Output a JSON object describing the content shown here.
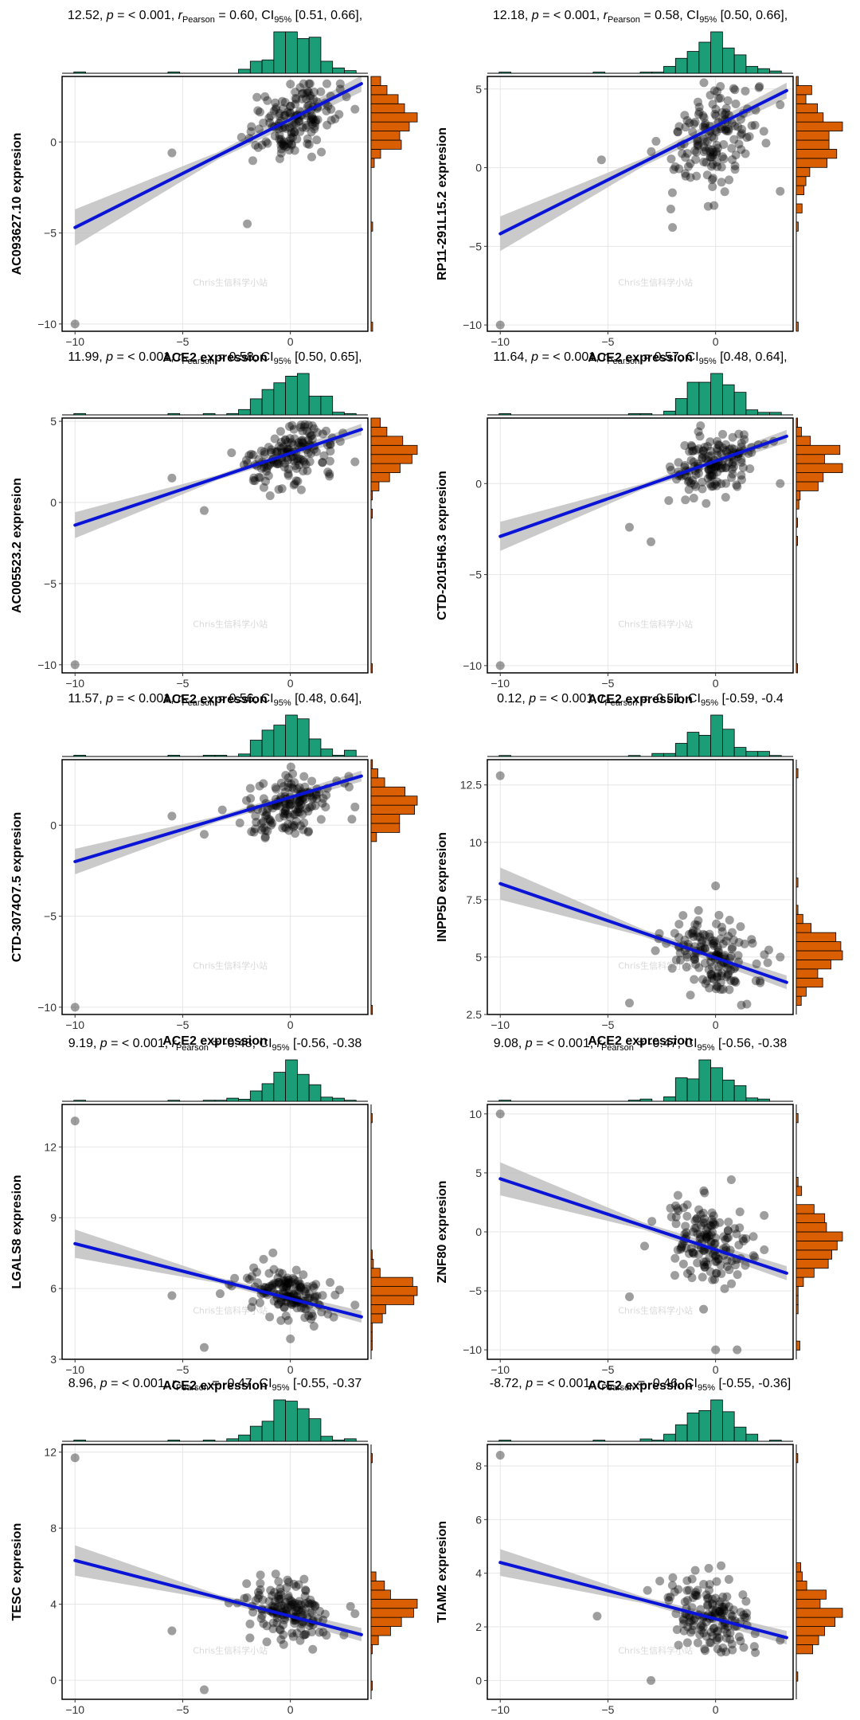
{
  "figure": {
    "watermark": "Chris生信科学小站",
    "colors": {
      "points": "#000000",
      "fit_line": "#0a14d6",
      "confidence_band": "#bdbdbd",
      "x_histogram": "#1b9e77",
      "y_histogram": "#d95f02"
    }
  },
  "chart_data": [
    {
      "type": "scatter",
      "title": "12.52, p = < 0.001, r_Pearson = 0.60, CI95% [0.51, 0.66],",
      "stat_t": "12.52",
      "stat_p": "< 0.001",
      "stat_r": "0.60",
      "stat_ci": "[0.51, 0.66],",
      "xlabel": "ACE2 expression",
      "ylabel": "AC093627.10 expresion",
      "xlim": [
        -10.6,
        3.6
      ],
      "ylim": [
        -10.4,
        3.6
      ],
      "xticks": [
        -10,
        -5,
        0
      ],
      "yticks": [
        -10,
        -5,
        0
      ],
      "fit": {
        "x": [
          -10,
          3.3
        ],
        "y": [
          -4.7,
          3.2
        ],
        "ci": [
          1.0,
          0.2,
          0.45
        ]
      },
      "points": {
        "center": [
          0.0,
          1.2
        ],
        "spread": [
          1.0,
          1.0
        ],
        "n": 150,
        "outliers": [
          [
            -10,
            -10
          ],
          [
            -2,
            -4.5
          ],
          [
            -5.5,
            -0.6
          ],
          [
            3,
            1.8
          ]
        ]
      }
    },
    {
      "type": "scatter",
      "title": "12.18, p = < 0.001, r_Pearson = 0.58, CI95% [0.50, 0.66],",
      "stat_t": "12.18",
      "stat_p": "< 0.001",
      "stat_r": "0.58",
      "stat_ci": "[0.50, 0.66],",
      "xlabel": "ACE2 expression",
      "ylabel": "RP11-291L15.2 expresion",
      "xlim": [
        -10.6,
        3.6
      ],
      "ylim": [
        -10.4,
        5.8
      ],
      "xticks": [
        -10,
        -5,
        0
      ],
      "yticks": [
        -10,
        -5,
        0,
        5
      ],
      "fit": {
        "x": [
          -10,
          3.3
        ],
        "y": [
          -4.2,
          4.9
        ],
        "ci": [
          1.1,
          0.25,
          0.5
        ]
      },
      "points": {
        "center": [
          0.0,
          2.0
        ],
        "spread": [
          1.0,
          1.6
        ],
        "n": 150,
        "outliers": [
          [
            -10,
            -10
          ],
          [
            -2,
            -3.8
          ],
          [
            -5.3,
            0.5
          ],
          [
            3,
            -1.5
          ],
          [
            3,
            4
          ]
        ]
      }
    },
    {
      "type": "scatter",
      "title": "11.99, p = < 0.001, r_Pearson = 0.58, CI95% [0.50, 0.65],",
      "stat_t": "11.99",
      "stat_p": "< 0.001",
      "stat_r": "0.58",
      "stat_ci": "[0.50, 0.65],",
      "xlabel": "ACE2 expression",
      "ylabel": "AC005523.2 expresion",
      "xlim": [
        -10.6,
        3.6
      ],
      "ylim": [
        -10.5,
        5.2
      ],
      "xticks": [
        -10,
        -5,
        0
      ],
      "yticks": [
        -10,
        -5,
        0,
        5
      ],
      "fit": {
        "x": [
          -10,
          3.3
        ],
        "y": [
          -1.4,
          4.5
        ],
        "ci": [
          0.8,
          0.15,
          0.35
        ]
      },
      "points": {
        "center": [
          0.0,
          2.9
        ],
        "spread": [
          1.0,
          0.9
        ],
        "n": 150,
        "outliers": [
          [
            -10,
            -10
          ],
          [
            -4,
            -0.5
          ],
          [
            -5.5,
            1.5
          ],
          [
            3,
            2.5
          ]
        ]
      }
    },
    {
      "type": "scatter",
      "title": "11.64, p = < 0.001, r_Pearson = 0.57, CI95% [0.48, 0.64],",
      "stat_t": "11.64",
      "stat_p": "< 0.001",
      "stat_r": "0.57",
      "stat_ci": "[0.48, 0.64],",
      "xlabel": "ACE2 expression",
      "ylabel": "CTD-2015H6.3 expresion",
      "xlim": [
        -10.6,
        3.6
      ],
      "ylim": [
        -10.4,
        3.6
      ],
      "xticks": [
        -10,
        -5,
        0
      ],
      "yticks": [
        -10,
        -5,
        0
      ],
      "fit": {
        "x": [
          -10,
          3.3
        ],
        "y": [
          -2.9,
          2.6
        ],
        "ci": [
          0.8,
          0.15,
          0.35
        ]
      },
      "points": {
        "center": [
          0.0,
          1.2
        ],
        "spread": [
          1.0,
          0.9
        ],
        "n": 150,
        "outliers": [
          [
            -10,
            -10
          ],
          [
            -4,
            -2.4
          ],
          [
            -3,
            -3.2
          ],
          [
            3,
            0
          ]
        ]
      }
    },
    {
      "type": "scatter",
      "title": "11.57, p = < 0.001, r_Pearson = 0.56, CI95% [0.48, 0.64],",
      "stat_t": "11.57",
      "stat_p": "< 0.001",
      "stat_r": "0.56",
      "stat_ci": "[0.48, 0.64],",
      "xlabel": "ACE2 expression",
      "ylabel": "CTD-3074O7.5 expresion",
      "xlim": [
        -10.6,
        3.6
      ],
      "ylim": [
        -10.4,
        3.6
      ],
      "xticks": [
        -10,
        -5,
        0
      ],
      "yticks": [
        -10,
        -5,
        0
      ],
      "fit": {
        "x": [
          -10,
          3.3
        ],
        "y": [
          -2.0,
          2.7
        ],
        "ci": [
          0.7,
          0.15,
          0.3
        ]
      },
      "points": {
        "center": [
          0.0,
          1.0
        ],
        "spread": [
          1.0,
          0.8
        ],
        "n": 150,
        "outliers": [
          [
            -10,
            -10
          ],
          [
            -4,
            -0.5
          ],
          [
            -5.5,
            0.5
          ],
          [
            3,
            1
          ]
        ]
      }
    },
    {
      "type": "scatter",
      "title": "0.12, p = < 0.001, r_Pearson = -0.51, CI95% [-0.59, -0.4",
      "stat_t": "0.12",
      "stat_p": "< 0.001",
      "stat_r": "-0.51",
      "stat_ci": "[-0.59, -0.4",
      "xlabel": "ACE2 expression",
      "ylabel": "INPP5D expresion",
      "xlim": [
        -10.6,
        3.6
      ],
      "ylim": [
        2.5,
        13.6
      ],
      "xticks": [
        -10,
        -5,
        0
      ],
      "yticks": [
        2.5,
        5.0,
        7.5,
        10.0,
        12.5
      ],
      "fit": {
        "x": [
          -10,
          3.3
        ],
        "y": [
          8.2,
          3.9
        ],
        "ci": [
          0.7,
          0.15,
          0.3
        ]
      },
      "points": {
        "center": [
          -0.3,
          5.0
        ],
        "spread": [
          1.0,
          0.8
        ],
        "n": 150,
        "outliers": [
          [
            -10,
            12.9
          ],
          [
            -4,
            3.0
          ],
          [
            0,
            8.1
          ],
          [
            3,
            5
          ]
        ]
      }
    },
    {
      "type": "scatter",
      "title": "9.19, p = < 0.001, r_Pearson = -0.48, CI95% [-0.56, -0.38",
      "stat_t": "9.19",
      "stat_p": "< 0.001",
      "stat_r": "-0.48",
      "stat_ci": "[-0.56, -0.38",
      "xlabel": "ACE2 expression",
      "ylabel": "LGALS8 expresion",
      "xlim": [
        -10.6,
        3.6
      ],
      "ylim": [
        3.0,
        13.8
      ],
      "xticks": [
        -10,
        -5,
        0
      ],
      "yticks": [
        3,
        6,
        9,
        12
      ],
      "fit": {
        "x": [
          -10,
          3.3
        ],
        "y": [
          7.9,
          4.8
        ],
        "ci": [
          0.6,
          0.12,
          0.25
        ]
      },
      "points": {
        "center": [
          -0.2,
          5.7
        ],
        "spread": [
          1.0,
          0.5
        ],
        "n": 150,
        "outliers": [
          [
            -10,
            13.1
          ],
          [
            -4,
            3.5
          ],
          [
            -5.5,
            5.7
          ],
          [
            3,
            5.3
          ]
        ]
      }
    },
    {
      "type": "scatter",
      "title": "9.08, p = < 0.001, r_Pearson = -0.47, CI95% [-0.56, -0.38",
      "stat_t": "9.08",
      "stat_p": "< 0.001",
      "stat_r": "-0.47",
      "stat_ci": "[-0.56, -0.38",
      "xlabel": "ACE2 expression",
      "ylabel": "ZNF80 expresion",
      "xlim": [
        -10.6,
        3.6
      ],
      "ylim": [
        -10.8,
        10.8
      ],
      "xticks": [
        -10,
        -5,
        0
      ],
      "yticks": [
        -10,
        -5,
        0,
        5,
        10
      ],
      "fit": {
        "x": [
          -10,
          3.3
        ],
        "y": [
          4.5,
          -3.5
        ],
        "ci": [
          1.4,
          0.3,
          0.6
        ]
      },
      "points": {
        "center": [
          -0.3,
          -0.9
        ],
        "spread": [
          1.0,
          1.8
        ],
        "n": 150,
        "outliers": [
          [
            -10,
            10
          ],
          [
            -4,
            -5.5
          ],
          [
            0,
            -10
          ],
          [
            1,
            -10
          ]
        ]
      }
    },
    {
      "type": "scatter",
      "title": "8.96, p = < 0.001, r_Pearson = -0.47, CI95% [-0.55, -0.37",
      "stat_t": "8.96",
      "stat_p": "< 0.001",
      "stat_r": "-0.47",
      "stat_ci": "[-0.55, -0.37",
      "xlabel": "ACE2 expression",
      "ylabel": "TESC expresion",
      "xlim": [
        -10.6,
        3.6
      ],
      "ylim": [
        -1.0,
        12.4
      ],
      "xticks": [
        -10,
        -5,
        0
      ],
      "yticks": [
        0,
        4,
        8,
        12
      ],
      "fit": {
        "x": [
          -10,
          3.3
        ],
        "y": [
          6.3,
          2.4
        ],
        "ci": [
          0.8,
          0.15,
          0.35
        ]
      },
      "points": {
        "center": [
          -0.2,
          3.6
        ],
        "spread": [
          1.0,
          0.8
        ],
        "n": 150,
        "outliers": [
          [
            -10,
            11.7
          ],
          [
            -4,
            -0.5
          ],
          [
            -5.5,
            2.6
          ],
          [
            3,
            3.5
          ]
        ]
      }
    },
    {
      "type": "scatter",
      "title": "-8.72, p = < 0.001, r_Pearson = -0.46, CI95% [-0.55, -0.36]",
      "stat_t": "-8.72",
      "stat_p": "< 0.001",
      "stat_r": "-0.46",
      "stat_ci": "[-0.55, -0.36]",
      "xlabel": "ACE2 expression",
      "ylabel": "TIAM2 expresion",
      "xlim": [
        -10.6,
        3.6
      ],
      "ylim": [
        -0.7,
        8.8
      ],
      "xticks": [
        -10,
        -5,
        0
      ],
      "yticks": [
        0,
        2,
        4,
        6,
        8
      ],
      "fit": {
        "x": [
          -10,
          3.3
        ],
        "y": [
          4.4,
          1.6
        ],
        "ci": [
          0.5,
          0.12,
          0.25
        ]
      },
      "points": {
        "center": [
          -0.2,
          2.5
        ],
        "spread": [
          1.0,
          0.7
        ],
        "n": 150,
        "outliers": [
          [
            -10,
            8.4
          ],
          [
            -3,
            0
          ],
          [
            -5.5,
            2.4
          ],
          [
            3,
            1.5
          ]
        ]
      }
    }
  ]
}
